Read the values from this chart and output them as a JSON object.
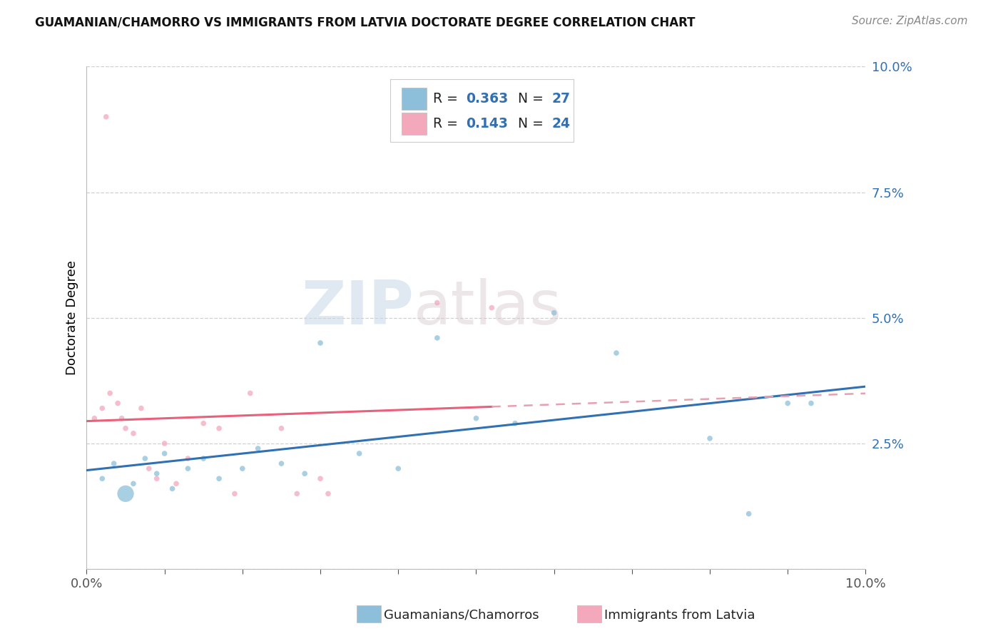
{
  "title": "GUAMANIAN/CHAMORRO VS IMMIGRANTS FROM LATVIA DOCTORATE DEGREE CORRELATION CHART",
  "source": "Source: ZipAtlas.com",
  "ylabel": "Doctorate Degree",
  "xlim": [
    0.0,
    10.0
  ],
  "ylim": [
    0.0,
    10.0
  ],
  "yticks": [
    0.0,
    2.5,
    5.0,
    7.5,
    10.0
  ],
  "ytick_labels": [
    "",
    "2.5%",
    "5.0%",
    "7.5%",
    "10.0%"
  ],
  "xtick_labels": [
    "0.0%",
    "",
    "",
    "",
    "",
    "",
    "",
    "",
    "",
    "",
    "10.0%"
  ],
  "legend_r1": "R = 0.363",
  "legend_n1": "N = 27",
  "legend_r2": "R = 0.143",
  "legend_n2": "N = 24",
  "blue_color": "#8dbfda",
  "pink_color": "#f4a8bc",
  "blue_line_color": "#3070b3",
  "pink_line_color": "#e8607a",
  "pink_dash_color": "#e8a0b0",
  "watermark": "ZIPAtlas",
  "blue_scatter_x": [
    0.2,
    0.35,
    0.5,
    0.6,
    0.75,
    0.9,
    1.0,
    1.1,
    1.3,
    1.5,
    1.7,
    2.0,
    2.2,
    2.5,
    2.8,
    3.0,
    3.5,
    4.0,
    4.5,
    5.0,
    5.5,
    6.0,
    6.8,
    8.0,
    9.0,
    9.3,
    8.5
  ],
  "blue_scatter_y": [
    1.8,
    2.1,
    1.5,
    1.7,
    2.2,
    1.9,
    2.3,
    1.6,
    2.0,
    2.2,
    1.8,
    2.0,
    2.4,
    2.1,
    1.9,
    4.5,
    2.3,
    2.0,
    4.6,
    3.0,
    2.9,
    5.1,
    4.3,
    2.6,
    3.3,
    3.3,
    1.1
  ],
  "blue_scatter_size": [
    30,
    30,
    280,
    30,
    30,
    30,
    30,
    30,
    30,
    30,
    30,
    30,
    30,
    30,
    30,
    30,
    30,
    30,
    30,
    30,
    30,
    30,
    30,
    30,
    30,
    30,
    30
  ],
  "pink_scatter_x": [
    0.1,
    0.2,
    0.3,
    0.4,
    0.45,
    0.5,
    0.6,
    0.7,
    0.8,
    0.9,
    1.0,
    1.15,
    1.3,
    1.5,
    1.7,
    1.9,
    2.1,
    2.5,
    2.7,
    3.0,
    3.1,
    4.5,
    5.2,
    0.25
  ],
  "pink_scatter_y": [
    3.0,
    3.2,
    3.5,
    3.3,
    3.0,
    2.8,
    2.7,
    3.2,
    2.0,
    1.8,
    2.5,
    1.7,
    2.2,
    2.9,
    2.8,
    1.5,
    3.5,
    2.8,
    1.5,
    1.8,
    1.5,
    5.3,
    5.2,
    9.0
  ],
  "pink_scatter_size": [
    30,
    30,
    30,
    30,
    30,
    30,
    30,
    30,
    30,
    30,
    30,
    30,
    30,
    30,
    30,
    30,
    30,
    30,
    30,
    30,
    30,
    30,
    30,
    30
  ],
  "legend_label1": "Guamanians/Chamorros",
  "legend_label2": "Immigrants from Latvia"
}
